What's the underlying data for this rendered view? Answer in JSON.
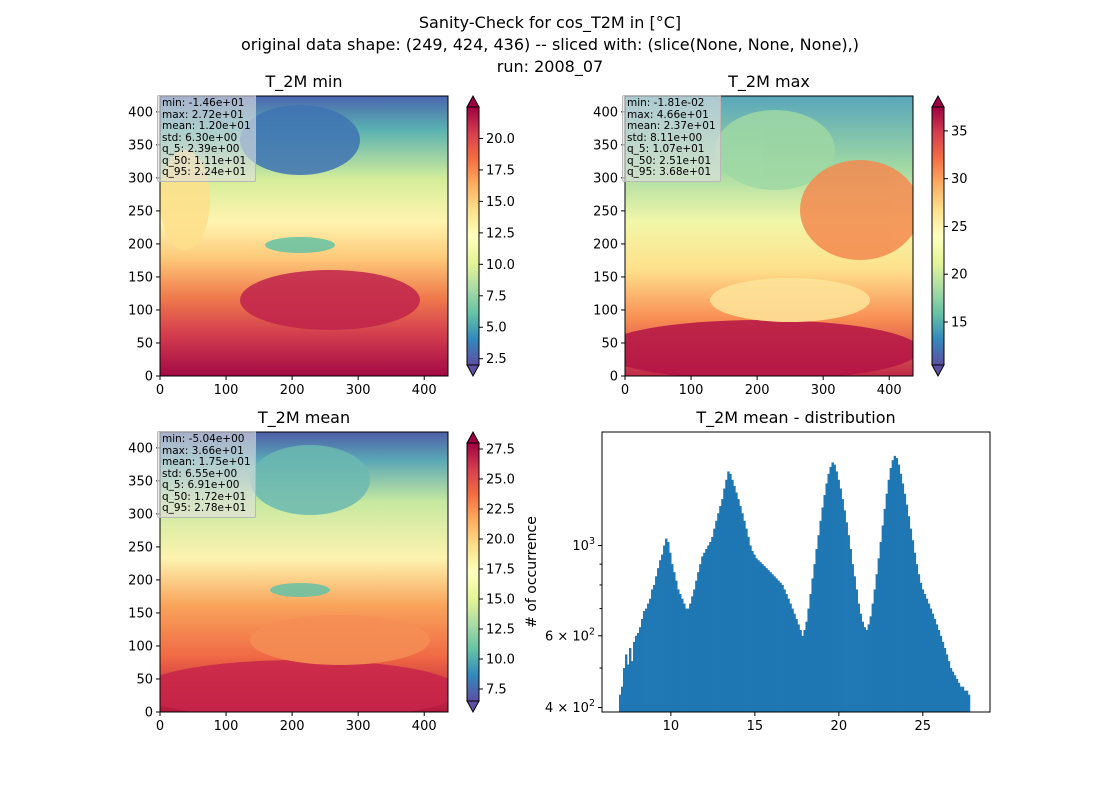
{
  "figure": {
    "title_lines": [
      "Sanity-Check for cos_T2M in [°C]",
      "original data shape: (249, 424, 436) -- sliced with: (slice(None, None, None),)",
      "run: 2008_07"
    ]
  },
  "colors": {
    "histogram_bar": "#1f77b4",
    "colormap": "Spectral_r"
  },
  "chart_data": [
    {
      "type": "heatmap",
      "title": "T_2M min",
      "xlim": [
        0,
        436
      ],
      "ylim": [
        0,
        424
      ],
      "xticks": [
        "0",
        "100",
        "200",
        "300",
        "400"
      ],
      "yticks": [
        "0",
        "50",
        "100",
        "150",
        "200",
        "250",
        "300",
        "350",
        "400"
      ],
      "colorbar": {
        "range": [
          2.0,
          22.5
        ],
        "ticks": [
          "2.5",
          "5.0",
          "7.5",
          "10.0",
          "12.5",
          "15.0",
          "17.5",
          "20.0"
        ],
        "extend": "both"
      },
      "stats": [
        "min: -1.46e+01",
        "max: 2.72e+01",
        "mean: 1.20e+01",
        "std: 6.30e+00",
        "q_5: 2.39e+00",
        "q_50: 1.11e+01",
        "q_95: 2.24e+01"
      ]
    },
    {
      "type": "heatmap",
      "title": "T_2M max",
      "xlim": [
        0,
        436
      ],
      "ylim": [
        0,
        424
      ],
      "xticks": [
        "0",
        "100",
        "200",
        "300",
        "400"
      ],
      "yticks": [
        "0",
        "50",
        "100",
        "150",
        "200",
        "250",
        "300",
        "350",
        "400"
      ],
      "colorbar": {
        "range": [
          10.5,
          37.5
        ],
        "ticks": [
          "15",
          "20",
          "25",
          "30",
          "35"
        ],
        "extend": "both"
      },
      "stats": [
        "min: -1.81e-02",
        "max: 4.66e+01",
        "mean: 2.37e+01",
        "std: 8.11e+00",
        "q_5: 1.07e+01",
        "q_50: 2.51e+01",
        "q_95: 3.68e+01"
      ]
    },
    {
      "type": "heatmap",
      "title": "T_2M mean",
      "xlim": [
        0,
        436
      ],
      "ylim": [
        0,
        424
      ],
      "xticks": [
        "0",
        "100",
        "200",
        "300",
        "400"
      ],
      "yticks": [
        "0",
        "50",
        "100",
        "150",
        "200",
        "250",
        "300",
        "350",
        "400"
      ],
      "colorbar": {
        "range": [
          6.5,
          28.0
        ],
        "ticks": [
          "7.5",
          "10.0",
          "12.5",
          "15.0",
          "17.5",
          "20.0",
          "22.5",
          "25.0",
          "27.5"
        ],
        "extend": "both"
      },
      "stats": [
        "min: -5.04e+00",
        "max: 3.66e+01",
        "mean: 1.75e+01",
        "std: 6.55e+00",
        "q_5: 6.91e+00",
        "q_50: 1.72e+01",
        "q_95: 2.78e+01"
      ]
    },
    {
      "type": "bar",
      "title": "T_2M mean - distribution",
      "ylabel": "# of occurrence",
      "xlim": [
        5.9,
        29.0
      ],
      "ylim": [
        390,
        1900
      ],
      "log_y": true,
      "xticks": [
        "10",
        "15",
        "20",
        "25"
      ],
      "yticks": [
        {
          "value": 400,
          "base": "4",
          "exp": "2",
          "times": true
        },
        {
          "value": 600,
          "base": "6",
          "exp": "2",
          "times": true
        },
        {
          "value": 1000,
          "base": "10",
          "exp": "3",
          "times": false
        }
      ],
      "bin_start": 6.91,
      "bin_end": 27.8,
      "values": [
        430,
        450,
        500,
        540,
        510,
        560,
        520,
        580,
        600,
        610,
        630,
        660,
        690,
        700,
        720,
        740,
        780,
        800,
        840,
        880,
        920,
        950,
        1000,
        1040,
        1020,
        960,
        900,
        860,
        820,
        780,
        760,
        740,
        720,
        700,
        700,
        720,
        750,
        780,
        820,
        860,
        900,
        940,
        960,
        980,
        1000,
        1020,
        1050,
        1100,
        1150,
        1200,
        1250,
        1300,
        1380,
        1450,
        1520,
        1500,
        1450,
        1400,
        1350,
        1300,
        1250,
        1200,
        1150,
        1100,
        1050,
        1000,
        970,
        950,
        930,
        920,
        910,
        900,
        890,
        880,
        870,
        860,
        850,
        840,
        830,
        820,
        810,
        800,
        780,
        760,
        740,
        720,
        700,
        680,
        660,
        640,
        620,
        600,
        620,
        650,
        700,
        760,
        830,
        900,
        980,
        1060,
        1150,
        1240,
        1330,
        1420,
        1500,
        1560,
        1600,
        1580,
        1520,
        1450,
        1380,
        1300,
        1220,
        1140,
        1060,
        980,
        900,
        840,
        780,
        720,
        680,
        650,
        630,
        620,
        640,
        670,
        720,
        780,
        850,
        930,
        1020,
        1120,
        1230,
        1340,
        1450,
        1550,
        1620,
        1660,
        1640,
        1580,
        1500,
        1420,
        1340,
        1260,
        1180,
        1100,
        1030,
        960,
        900,
        850,
        810,
        780,
        760,
        740,
        720,
        700,
        680,
        660,
        640,
        620,
        600,
        580,
        560,
        540,
        520,
        500,
        490,
        480,
        470,
        460,
        450,
        450,
        440,
        440,
        430
      ]
    }
  ]
}
